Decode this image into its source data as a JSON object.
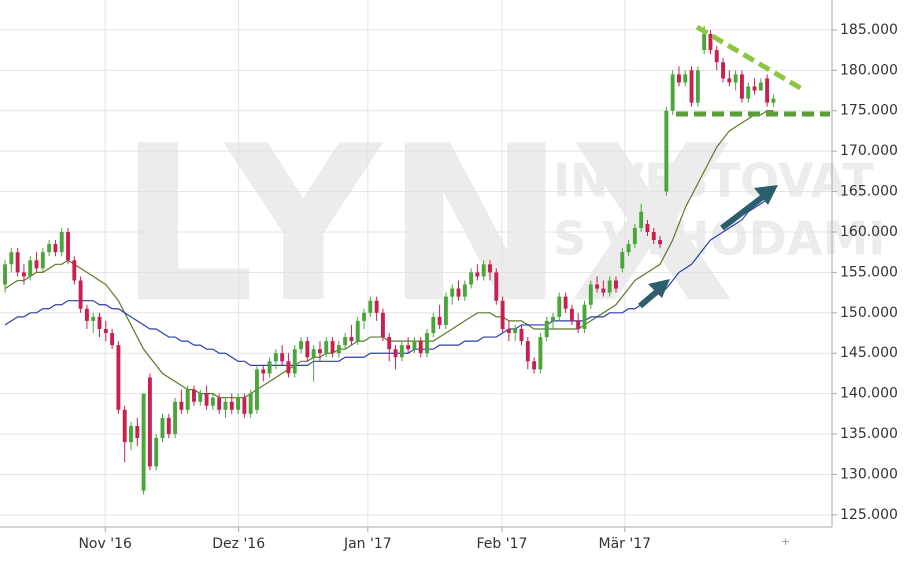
{
  "chart_data": {
    "type": "candlestick",
    "watermark": [
      "LYNX",
      "INVESTOVAT",
      "S VÝHODAMI"
    ],
    "up_color": "#4aa63a",
    "down_color": "#c8204f",
    "open": [
      153.5,
      156,
      157.5,
      155,
      154.5,
      156.5,
      155.5,
      157.5,
      158.5,
      157.5,
      160,
      156.5,
      154,
      150.5,
      149,
      149.5,
      148,
      147.5,
      146,
      138,
      134,
      136,
      128,
      142,
      131,
      134.5,
      137,
      135,
      139,
      138,
      140.5,
      139,
      140,
      138.5,
      139.5,
      138,
      139,
      138,
      139.5,
      137.5,
      138,
      143,
      142.5,
      144,
      145,
      144,
      142.5,
      145.5,
      146.5,
      144.5,
      145.5,
      145,
      146.5,
      145,
      146,
      147,
      146.5,
      149,
      150,
      151.5,
      150,
      147,
      145.5,
      144.5,
      146,
      145.5,
      146.5,
      145,
      147.5,
      149.5,
      148.5,
      152,
      153,
      152,
      153.5,
      155,
      154.5,
      156,
      155,
      151.5,
      148,
      147.5,
      148,
      146.5,
      144,
      143,
      147,
      149,
      149.5,
      152,
      150.5,
      149,
      148,
      151,
      153.5,
      153,
      152.5,
      154,
      155.5,
      157.5,
      158.5,
      160.5,
      161,
      160,
      159,
      165,
      175,
      179.5,
      178.5,
      180,
      176,
      182.5,
      184.5,
      182.5,
      181,
      179,
      178.5,
      179.5,
      176.5,
      178,
      177.5,
      179,
      176
    ],
    "high": [
      156.5,
      158,
      158,
      156,
      157,
      157.5,
      158,
      159,
      159,
      160.5,
      160.5,
      157,
      154.5,
      151,
      150,
      150,
      149,
      148,
      146.5,
      138.5,
      136.5,
      137,
      140,
      142.5,
      135,
      137.5,
      137.5,
      139.5,
      140.5,
      141,
      141,
      140.5,
      141,
      140,
      140,
      139.5,
      140,
      140,
      140,
      140.5,
      143.5,
      143.5,
      144.5,
      145.5,
      146,
      145,
      146,
      147,
      147,
      146,
      146.5,
      147,
      147,
      146.5,
      147.5,
      148.5,
      149.5,
      150.5,
      152,
      152,
      150.5,
      147.5,
      146,
      146.5,
      147,
      147,
      147,
      148,
      150,
      151,
      152.5,
      153.5,
      154,
      154,
      155.5,
      156,
      156.5,
      156.5,
      155.5,
      152,
      149,
      148.5,
      148.5,
      147,
      144.5,
      147.5,
      149.5,
      150,
      152.5,
      152.5,
      151,
      150,
      151.5,
      154,
      154.5,
      154,
      154.5,
      154.5,
      158,
      159,
      161,
      163.5,
      161.5,
      160.5,
      159.5,
      175.5,
      180,
      180.5,
      180,
      180.5,
      180.5,
      185.5,
      185,
      183,
      181.5,
      180,
      180,
      180,
      178.5,
      179,
      179,
      179.5,
      177
    ],
    "low": [
      152.5,
      155,
      154.5,
      153.5,
      154,
      155,
      155,
      157,
      157,
      157,
      156,
      153.5,
      150,
      148,
      147.5,
      147,
      146.5,
      145.5,
      137.5,
      131.5,
      133,
      133.5,
      127.5,
      130.5,
      130.5,
      134,
      134.5,
      134.5,
      137.5,
      137.5,
      138.5,
      138.5,
      138,
      138,
      137.5,
      137,
      137.5,
      137.5,
      137,
      137,
      137.5,
      141.5,
      142,
      143,
      143.5,
      142,
      142,
      145,
      144,
      141.5,
      144,
      144.5,
      144.5,
      144.5,
      145.5,
      146,
      146,
      148,
      149.5,
      149,
      146.5,
      144,
      143,
      144,
      145,
      145,
      144.5,
      144.5,
      147,
      148,
      148,
      151,
      151.5,
      151.5,
      153,
      154,
      154,
      154,
      151,
      147.5,
      146.5,
      146.5,
      146,
      143,
      142.5,
      142.5,
      146.5,
      148,
      149,
      150,
      148.5,
      147.5,
      147.5,
      150.5,
      152.5,
      152,
      152,
      152.5,
      155,
      157,
      158,
      160,
      159.5,
      158.5,
      158,
      164.5,
      174.5,
      178,
      178,
      175.5,
      175.5,
      182,
      182,
      180,
      178.5,
      178,
      177.5,
      176,
      176,
      177,
      177.5,
      175.5,
      175.5
    ],
    "close": [
      156,
      157.5,
      155,
      154.5,
      156.5,
      155.5,
      157.5,
      158.5,
      157.5,
      160,
      156.5,
      154,
      150.5,
      149,
      149.5,
      148,
      147.5,
      146,
      138,
      134,
      136,
      134.5,
      140,
      131,
      134.5,
      137,
      135,
      139,
      138,
      140.5,
      139,
      140,
      138.5,
      139.5,
      138,
      139,
      138,
      139.5,
      137.5,
      140,
      143,
      142.5,
      144,
      145,
      144,
      142.5,
      145.5,
      146.5,
      144.5,
      145.5,
      145,
      146.5,
      145,
      146,
      147,
      146.5,
      149,
      150,
      151.5,
      150,
      147,
      145.5,
      144.5,
      146,
      145.5,
      146.5,
      145,
      147.5,
      149.5,
      148.5,
      152,
      153,
      152,
      153.5,
      155,
      154.5,
      156,
      155,
      151.5,
      148,
      147.5,
      148,
      146.5,
      144,
      143,
      147,
      149,
      149.5,
      152,
      150.5,
      149,
      148,
      151,
      153.5,
      153,
      152.5,
      154,
      153,
      157.5,
      158.5,
      160.5,
      162.5,
      160,
      159,
      158.5,
      175,
      179.5,
      178.5,
      179.5,
      176,
      180,
      184.5,
      182.5,
      181,
      179,
      178.5,
      179.5,
      176.5,
      178,
      177.5,
      178.5,
      176,
      176.5
    ],
    "moving_averages": [
      {
        "color": "#5a7a2a",
        "values": [
          153,
          153.5,
          154,
          154,
          154.5,
          155,
          155,
          155.5,
          156,
          156,
          156.5,
          156,
          155.5,
          155,
          154.5,
          154,
          153.5,
          152.5,
          151.5,
          150,
          148.5,
          147,
          145.5,
          144.5,
          143.5,
          142.5,
          142,
          141.5,
          141,
          140.5,
          140.5,
          140,
          140,
          140,
          139.5,
          139.5,
          139.5,
          139.5,
          139.5,
          140,
          140.5,
          141,
          141.5,
          142,
          142.5,
          143,
          143.5,
          144,
          144,
          144.5,
          144.5,
          145,
          145,
          145.5,
          145.5,
          146,
          146.5,
          146.5,
          147,
          147,
          147,
          146.5,
          146.5,
          146.5,
          146.5,
          146.5,
          146.5,
          146.5,
          146.5,
          147,
          147.5,
          148,
          148.5,
          149,
          149.5,
          150,
          150,
          150,
          149.5,
          149.5,
          149,
          149,
          149,
          148.5,
          148,
          148,
          148,
          148,
          148,
          148,
          148,
          148,
          148.5,
          149,
          149.5,
          150,
          150.5,
          151,
          152,
          153,
          154,
          154.5,
          155,
          155.5,
          156,
          157.5,
          159,
          161,
          163,
          164.5,
          166,
          167.5,
          169,
          170.5,
          171.5,
          172.5,
          173,
          173.5,
          174,
          174.5,
          174.5,
          175,
          175
        ]
      },
      {
        "color": "#2a3fb0",
        "values": [
          148.5,
          149,
          149.5,
          149.5,
          150,
          150,
          150.5,
          150.5,
          151,
          151,
          151.5,
          151.5,
          151.5,
          151.5,
          151.5,
          151,
          151,
          150.5,
          150.5,
          150,
          149.5,
          149,
          148.5,
          148,
          148,
          147.5,
          147,
          147,
          146.5,
          146.5,
          146,
          146,
          145.5,
          145.5,
          145,
          145,
          144.5,
          144,
          144,
          143.5,
          143.5,
          143.5,
          143.5,
          143.5,
          143.5,
          143.5,
          143.5,
          143.5,
          143.5,
          144,
          144,
          144,
          144,
          144,
          144.5,
          144.5,
          144.5,
          144.5,
          145,
          145,
          145,
          145,
          145,
          145,
          145,
          145.5,
          145.5,
          145.5,
          145.5,
          146,
          146,
          146,
          146,
          146.5,
          146.5,
          146.5,
          147,
          147,
          147,
          147.5,
          148,
          148,
          148.5,
          148.5,
          148.5,
          148.5,
          148.5,
          149,
          149,
          149,
          149,
          149,
          149,
          149.5,
          149.5,
          149.5,
          150,
          150,
          150,
          150.5,
          150.5,
          151,
          151.5,
          152,
          152.5,
          153,
          154,
          155,
          155.5,
          156,
          157,
          158,
          159,
          159.5,
          160,
          160.5,
          161,
          161.5,
          162.5,
          163,
          163.5,
          164,
          165
        ]
      }
    ],
    "ylim": [
      123.5,
      188.7
    ],
    "yticks": [
      {
        "value": 125,
        "label": "125.000"
      },
      {
        "value": 130,
        "label": "130.000"
      },
      {
        "value": 135,
        "label": "135.000"
      },
      {
        "value": 140,
        "label": "140.000"
      },
      {
        "value": 145,
        "label": "145.000"
      },
      {
        "value": 150,
        "label": "150.000"
      },
      {
        "value": 155,
        "label": "155.000"
      },
      {
        "value": 160,
        "label": "160.000"
      },
      {
        "value": 165,
        "label": "165.000"
      },
      {
        "value": 170,
        "label": "170.000"
      },
      {
        "value": 175,
        "label": "175.000"
      },
      {
        "value": 180,
        "label": "180.000"
      },
      {
        "value": 185,
        "label": "185.000"
      }
    ],
    "xlim": [
      -0.8,
      131.3
    ],
    "xticks": [
      {
        "value": 15.9,
        "label": "Nov '16"
      },
      {
        "value": 37.1,
        "label": "Dez '16"
      },
      {
        "value": 57.6,
        "label": "Jan '17"
      },
      {
        "value": 78.9,
        "label": "Feb '17"
      },
      {
        "value": 98.4,
        "label": "Mär '17"
      }
    ],
    "grid": true
  }
}
